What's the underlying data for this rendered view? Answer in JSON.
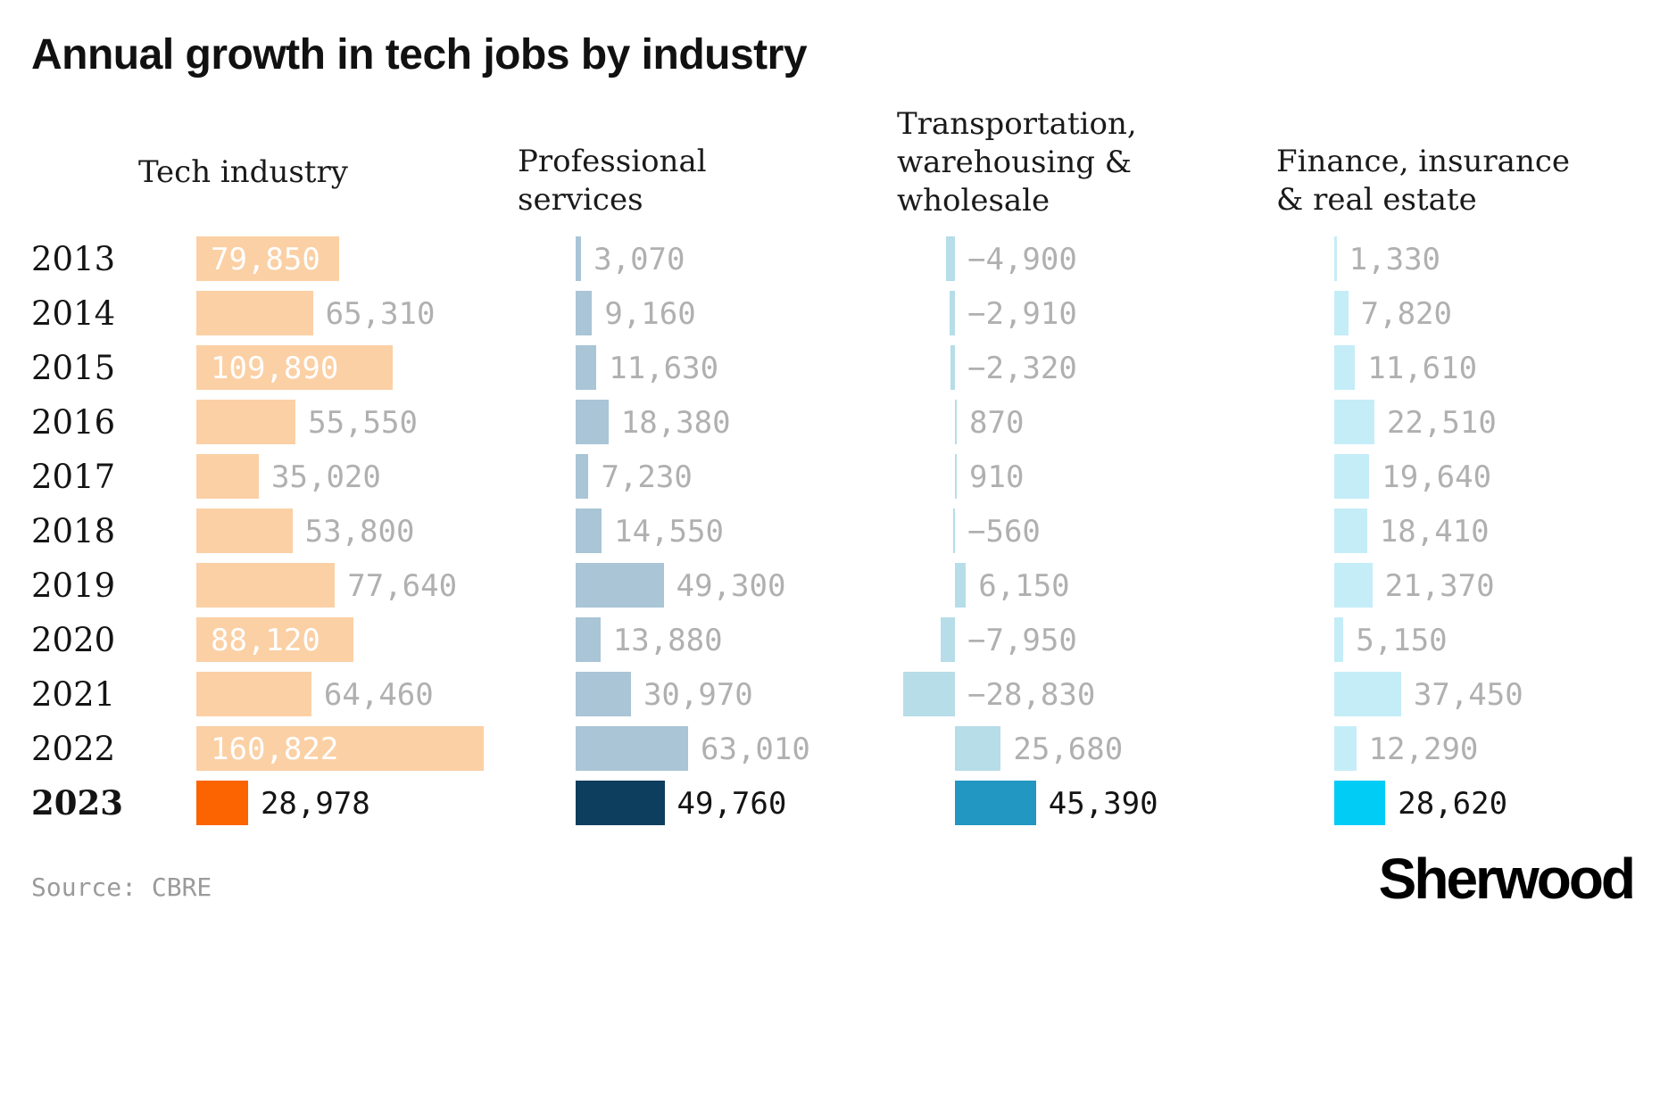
{
  "title": "Annual growth in tech jobs by industry",
  "source": "Source: CBRE",
  "brand": "Sherwood",
  "chart_data": {
    "type": "bar",
    "orientation": "horizontal",
    "categories": [
      "2013",
      "2014",
      "2015",
      "2016",
      "2017",
      "2018",
      "2019",
      "2020",
      "2021",
      "2022",
      "2023"
    ],
    "highlight_category": "2023",
    "label_color_muted": "#b0b0b0",
    "label_color_highlight": "#141414",
    "inside_label_color": "#ffffff",
    "series": [
      {
        "name": "Tech industry",
        "color": "#fbd0a5",
        "highlight_color": "#fb6400",
        "values": [
          79850,
          65310,
          109890,
          55550,
          35020,
          53800,
          77640,
          88120,
          64460,
          160822,
          28978
        ],
        "labels": [
          "79,850",
          "65,310",
          "109,890",
          "55,550",
          "35,020",
          "53,800",
          "77,640",
          "88,120",
          "64,460",
          "160,822",
          "28,978"
        ],
        "inside_label_rows": [
          0,
          2,
          7,
          9
        ]
      },
      {
        "name": "Professional services",
        "color": "#a9c5d6",
        "highlight_color": "#0e3e5e",
        "values": [
          3070,
          9160,
          11630,
          18380,
          7230,
          14550,
          49300,
          13880,
          30970,
          63010,
          49760
        ],
        "labels": [
          "3,070",
          "9,160",
          "11,630",
          "18,380",
          "7,230",
          "14,550",
          "49,300",
          "13,880",
          "30,970",
          "63,010",
          "49,760"
        ],
        "inside_label_rows": []
      },
      {
        "name": "Transportation, warehousing & wholesale",
        "color": "#b6dde8",
        "highlight_color": "#2197c1",
        "values": [
          -4900,
          -2910,
          -2320,
          870,
          910,
          -560,
          6150,
          -7950,
          -28830,
          25680,
          45390
        ],
        "labels": [
          "−4,900",
          "−2,910",
          "−2,320",
          "870",
          "910",
          "−560",
          "6,150",
          "−7,950",
          "−28,830",
          "25,680",
          "45,390"
        ],
        "inside_label_rows": []
      },
      {
        "name": "Finance, insurance & real estate",
        "color": "#c4edf8",
        "highlight_color": "#00ccf5",
        "values": [
          1330,
          7820,
          11610,
          22510,
          19640,
          18410,
          21370,
          5150,
          37450,
          12290,
          28620
        ],
        "labels": [
          "1,330",
          "7,820",
          "11,610",
          "22,510",
          "19,640",
          "18,410",
          "21,370",
          "5,150",
          "37,450",
          "12,290",
          "28,620"
        ],
        "inside_label_rows": []
      }
    ]
  }
}
